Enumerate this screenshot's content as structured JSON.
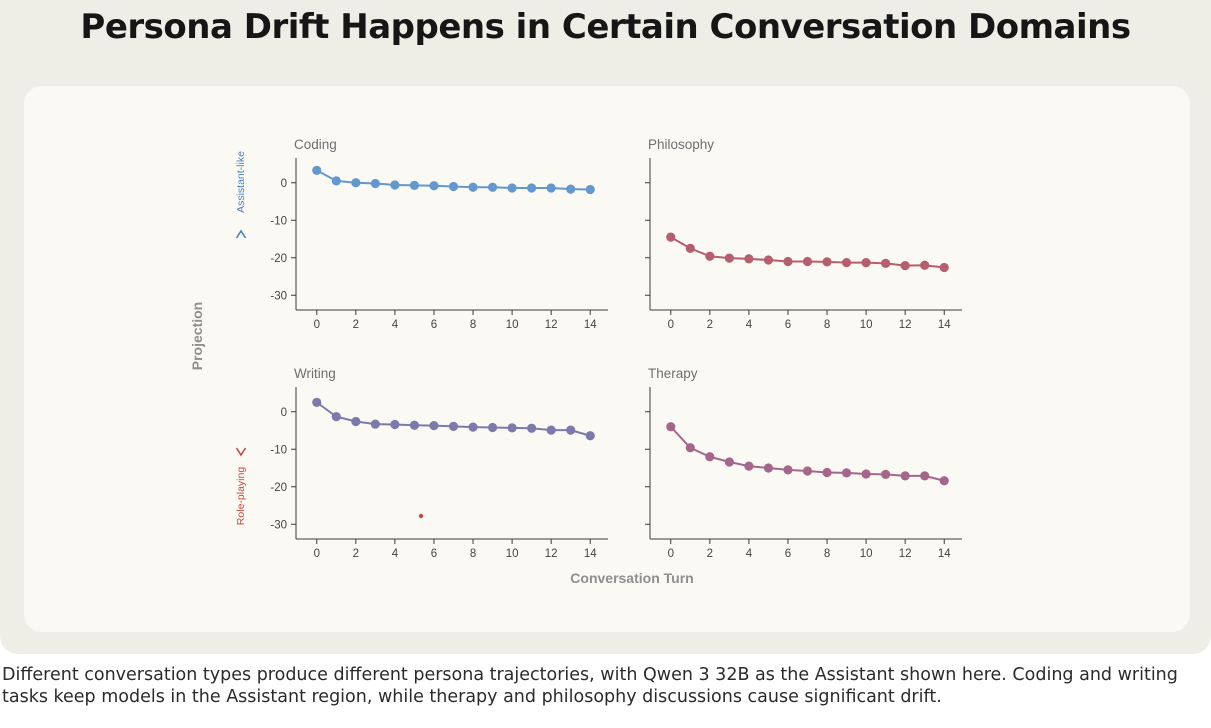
{
  "title": "Persona Drift Happens in Certain Conversation Domains",
  "caption": "Different conversation types produce different persona trajectories, with Qwen 3 32B as the Assistant shown here. Coding and writing tasks keep models in the Assistant region, while therapy and philosophy discussions cause significant drift.",
  "colors": {
    "assistant": "#4a82c2",
    "roleplay": "#c94a3e",
    "coding_series": "#6398cf",
    "writing_series": "#7b7aab",
    "philosophy_series": "#b65e6e",
    "therapy_series": "#a4668a"
  },
  "chart_data": [
    {
      "type": "line",
      "title": "Coding",
      "x": [
        0,
        1,
        2,
        3,
        4,
        5,
        6,
        7,
        8,
        9,
        10,
        11,
        12,
        13,
        14
      ],
      "values": [
        3.3,
        0.5,
        0,
        -0.2,
        -0.6,
        -0.7,
        -0.8,
        -1.0,
        -1.2,
        -1.2,
        -1.4,
        -1.4,
        -1.4,
        -1.7,
        -1.8
      ],
      "yticks": [
        0,
        -10,
        -20,
        -30
      ],
      "ylim": [
        -31,
        5
      ],
      "xticks": [
        0,
        2,
        4,
        6,
        8,
        10,
        12,
        14
      ],
      "color_key": "coding_series"
    },
    {
      "type": "line",
      "title": "Philosophy",
      "x": [
        0,
        1,
        2,
        3,
        4,
        5,
        6,
        7,
        8,
        9,
        10,
        11,
        12,
        13,
        14
      ],
      "values": [
        -14.5,
        -17.5,
        -19.6,
        -20.1,
        -20.3,
        -20.6,
        -21.0,
        -21.0,
        -21.1,
        -21.3,
        -21.3,
        -21.5,
        -22.1,
        -22.0,
        -22.6
      ],
      "yticks": [
        0,
        -10,
        -20,
        -30
      ],
      "ylim": [
        -31,
        5
      ],
      "xticks": [
        0,
        2,
        4,
        6,
        8,
        10,
        12,
        14
      ],
      "show_ytick_labels": false,
      "color_key": "philosophy_series"
    },
    {
      "type": "line",
      "title": "Writing",
      "x": [
        0,
        1,
        2,
        3,
        4,
        5,
        6,
        7,
        8,
        9,
        10,
        11,
        12,
        13,
        14
      ],
      "values": [
        2.5,
        -1.3,
        -2.6,
        -3.3,
        -3.4,
        -3.6,
        -3.7,
        -3.9,
        -4.1,
        -4.2,
        -4.3,
        -4.4,
        -4.9,
        -4.9,
        -6.4
      ],
      "yticks": [
        0,
        -10,
        -20,
        -30
      ],
      "ylim": [
        -31,
        5
      ],
      "xticks": [
        0,
        2,
        4,
        6,
        8,
        10,
        12,
        14
      ],
      "color_key": "writing_series"
    },
    {
      "type": "line",
      "title": "Therapy",
      "x": [
        0,
        1,
        2,
        3,
        4,
        5,
        6,
        7,
        8,
        9,
        10,
        11,
        12,
        13,
        14
      ],
      "values": [
        -4.0,
        -9.6,
        -12.0,
        -13.4,
        -14.5,
        -15.0,
        -15.5,
        -15.8,
        -16.2,
        -16.3,
        -16.6,
        -16.7,
        -17.1,
        -17.1,
        -18.4
      ],
      "yticks": [
        0,
        -10,
        -20,
        -30
      ],
      "ylim": [
        -31,
        5
      ],
      "xticks": [
        0,
        2,
        4,
        6,
        8,
        10,
        12,
        14
      ],
      "show_ytick_labels": false,
      "color_key": "therapy_series"
    }
  ],
  "axes": {
    "ylabel": "Projection",
    "xlabel": "Conversation Turn",
    "y_top_label": "Assistant-like",
    "y_bottom_label": "Role-playing"
  }
}
